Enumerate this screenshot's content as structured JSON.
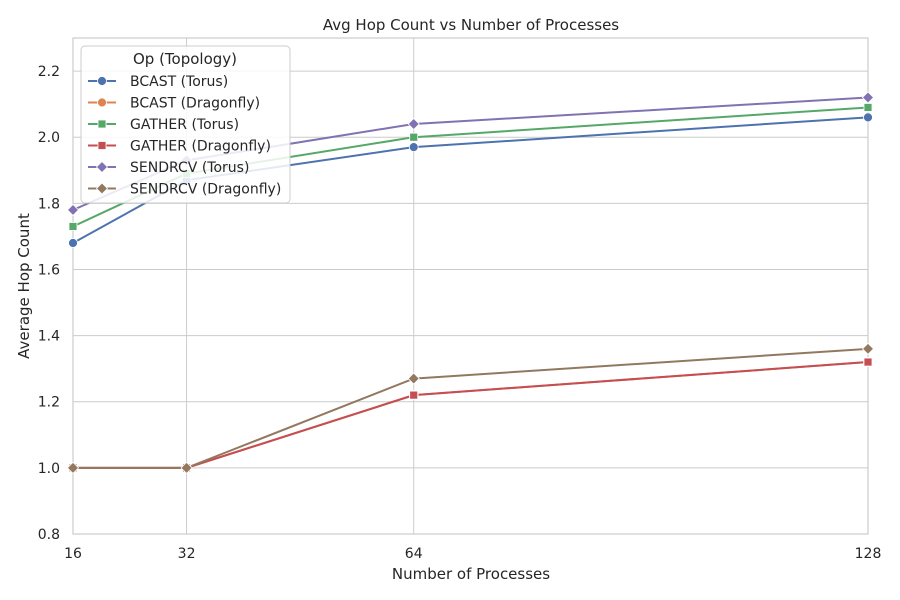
{
  "chart_data": {
    "type": "line",
    "title": "Avg Hop Count vs Number of Processes",
    "xlabel": "Number of Processes",
    "ylabel": "Average Hop Count",
    "x": [
      16,
      32,
      64,
      128
    ],
    "x_ticks": [
      "16",
      "32",
      "64",
      "128"
    ],
    "xlim": [
      16,
      128
    ],
    "ylim": [
      0.8,
      2.3
    ],
    "y_ticks": [
      "0.8",
      "1.0",
      "1.2",
      "1.4",
      "1.6",
      "1.8",
      "2.0",
      "2.2"
    ],
    "grid": true,
    "legend": {
      "title": "Op (Topology)",
      "placement": "top-left"
    },
    "series": [
      {
        "name": "BCAST (Torus)",
        "color": "#4c72b0",
        "marker": "circle",
        "values": [
          1.68,
          1.87,
          1.97,
          2.06
        ]
      },
      {
        "name": "BCAST (Dragonfly)",
        "color": "#dd8452",
        "marker": "circle",
        "values": [
          1.0,
          1.0,
          1.22,
          1.32
        ]
      },
      {
        "name": "GATHER (Torus)",
        "color": "#55a868",
        "marker": "square",
        "values": [
          1.73,
          1.89,
          2.0,
          2.09
        ]
      },
      {
        "name": "GATHER (Dragonfly)",
        "color": "#c44e52",
        "marker": "square",
        "values": [
          1.0,
          1.0,
          1.22,
          1.32
        ]
      },
      {
        "name": "SENDRCV (Torus)",
        "color": "#8172b3",
        "marker": "diamond",
        "values": [
          1.78,
          1.93,
          2.04,
          2.12
        ]
      },
      {
        "name": "SENDRCV (Dragonfly)",
        "color": "#937860",
        "marker": "diamond",
        "values": [
          1.0,
          1.0,
          1.27,
          1.36
        ]
      }
    ]
  }
}
